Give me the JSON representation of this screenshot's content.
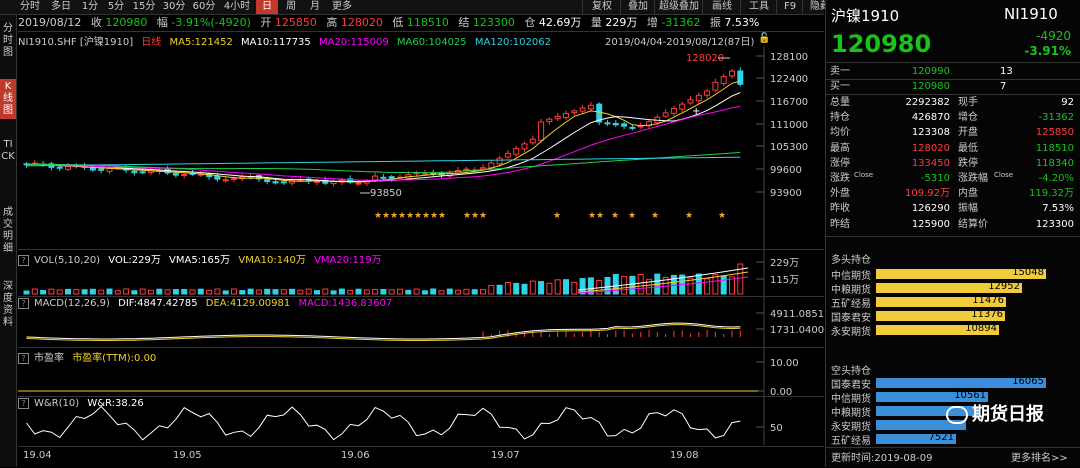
{
  "toolbar": {
    "tabs": [
      "分时",
      "多日",
      "1分",
      "5分",
      "15分",
      "30分",
      "60分",
      "4小时",
      "日",
      "周",
      "月",
      "更多"
    ],
    "active_tab": "日",
    "right_buttons": [
      "复权",
      "叠加",
      "超级叠加",
      "画线",
      "工具",
      "F9",
      "隐藏"
    ]
  },
  "leftnav": [
    {
      "label": "分时图",
      "active": false
    },
    {
      "label": "K线图",
      "active": true
    },
    {
      "label": "TICK",
      "active": false
    },
    {
      "label": "成交明细",
      "active": false
    },
    {
      "label": "深度资料",
      "active": false
    }
  ],
  "infobar": {
    "date": "2019/08/12",
    "close_label": "收",
    "close": "120980",
    "change_label": "幅",
    "change": "-3.91%(-4920)",
    "open_label": "开",
    "open": "125850",
    "high_label": "高",
    "high": "128020",
    "low_label": "低",
    "low": "118510",
    "settle_label": "结",
    "settle": "123300",
    "oi_label": "仓",
    "oi": "42.69万",
    "vol_label": "量",
    "vol": "229万",
    "inc_label": "增",
    "inc": "-31362",
    "amp_label": "振",
    "amp": "7.53%"
  },
  "kline_panel": {
    "symbol": "NI1910.SHF [沪镍1910]",
    "period": "日线",
    "ma5": "MA5:121452",
    "ma10": "MA10:117735",
    "ma20": "MA20:115009",
    "ma60": "MA60:104025",
    "ma120": "MA120:102062",
    "range": "2019/04/04-2019/08/12(87日)",
    "high_marker": "128020",
    "low_marker": "93850",
    "y_ticks": [
      "128100",
      "122400",
      "116700",
      "111000",
      "105300",
      "99600",
      "93900"
    ]
  },
  "vol_panel": {
    "title": "VOL(5,10,20)",
    "vol": "VOL:229万",
    "vma5": "VMA5:165万",
    "vma10": "VMA10:140万",
    "vma20": "VMA20:119万",
    "y_ticks": [
      "229万",
      "115万"
    ]
  },
  "macd_panel": {
    "title": "MACD(12,26,9)",
    "dif": "DIF:4847.42785",
    "dea": "DEA:4129.00981",
    "macd": "MACD:1436.83607",
    "y_ticks": [
      "4911.0851",
      "1731.0400"
    ]
  },
  "pe_panel": {
    "title": "市盈率",
    "pe": "市盈率(TTM):0.00",
    "y_ticks": [
      "10.00",
      "0.00"
    ]
  },
  "wr_panel": {
    "title": "W&R(10)",
    "wr": "W&R:38.26",
    "y_ticks": [
      "50"
    ]
  },
  "x_axis": [
    "19.04",
    "19.05",
    "19.06",
    "19.07",
    "19.08"
  ],
  "sidebar": {
    "name": "沪镍1910",
    "code": "NI1910",
    "price": "120980",
    "change": "-4920",
    "change_pct": "-3.91%",
    "ask_label": "卖一",
    "ask": "120990",
    "ask_vol": "13",
    "bid_label": "买一",
    "bid": "120980",
    "bid_vol": "7",
    "stats": [
      {
        "l1": "总量",
        "v1": "2292382",
        "c1": "white",
        "l2": "现手",
        "v2": "92",
        "c2": "white"
      },
      {
        "l1": "持仓",
        "v1": "426870",
        "c1": "white",
        "l2": "增仓",
        "v2": "-31362",
        "c2": "green"
      },
      {
        "l1": "均价",
        "v1": "123308",
        "c1": "white",
        "l2": "开盘",
        "v2": "125850",
        "c2": "red"
      },
      {
        "l1": "最高",
        "v1": "128020",
        "c1": "red",
        "l2": "最低",
        "v2": "118510",
        "c2": "green"
      },
      {
        "l1": "涨停",
        "v1": "133450",
        "c1": "red",
        "l2": "跌停",
        "v2": "118340",
        "c2": "green"
      },
      {
        "l1": "涨跌",
        "l1sup": "Close",
        "v1": "-5310",
        "c1": "green",
        "l2": "涨跌幅",
        "l2sup": "Close",
        "v2": "-4.20%",
        "c2": "green"
      },
      {
        "l1": "外盘",
        "v1": "109.92万",
        "c1": "red",
        "l2": "内盘",
        "v2": "119.32万",
        "c2": "green"
      },
      {
        "l1": "昨收",
        "v1": "126290",
        "c1": "white",
        "l2": "振幅",
        "v2": "7.53%",
        "c2": "white"
      },
      {
        "l1": "昨结",
        "v1": "125900",
        "c1": "white",
        "l2": "结算价",
        "v2": "123300",
        "c2": "white"
      }
    ],
    "long_title": "多头持仓",
    "long": [
      {
        "name": "中信期货",
        "value": "15048",
        "frac": 1.0
      },
      {
        "name": "中粮期货",
        "value": "12952",
        "frac": 0.861
      },
      {
        "name": "五矿经易",
        "value": "11476",
        "frac": 0.763
      },
      {
        "name": "国泰君安",
        "value": "11376",
        "frac": 0.756
      },
      {
        "name": "永安期货",
        "value": "10894",
        "frac": 0.724
      }
    ],
    "short_title": "空头持仓",
    "short": [
      {
        "name": "国泰君安",
        "value": "16065",
        "frac": 1.0
      },
      {
        "name": "中信期货",
        "value": "10561",
        "frac": 0.657
      },
      {
        "name": "中粮期货",
        "value": "",
        "frac": 0.6
      },
      {
        "name": "永安期货",
        "value": "",
        "frac": 0.53
      },
      {
        "name": "五矿经易",
        "value": "7521",
        "frac": 0.468
      }
    ],
    "update_label": "更新时间:",
    "update_time": "2019-08-09",
    "more": "更多排名>>"
  },
  "watermark": "期货日报"
}
